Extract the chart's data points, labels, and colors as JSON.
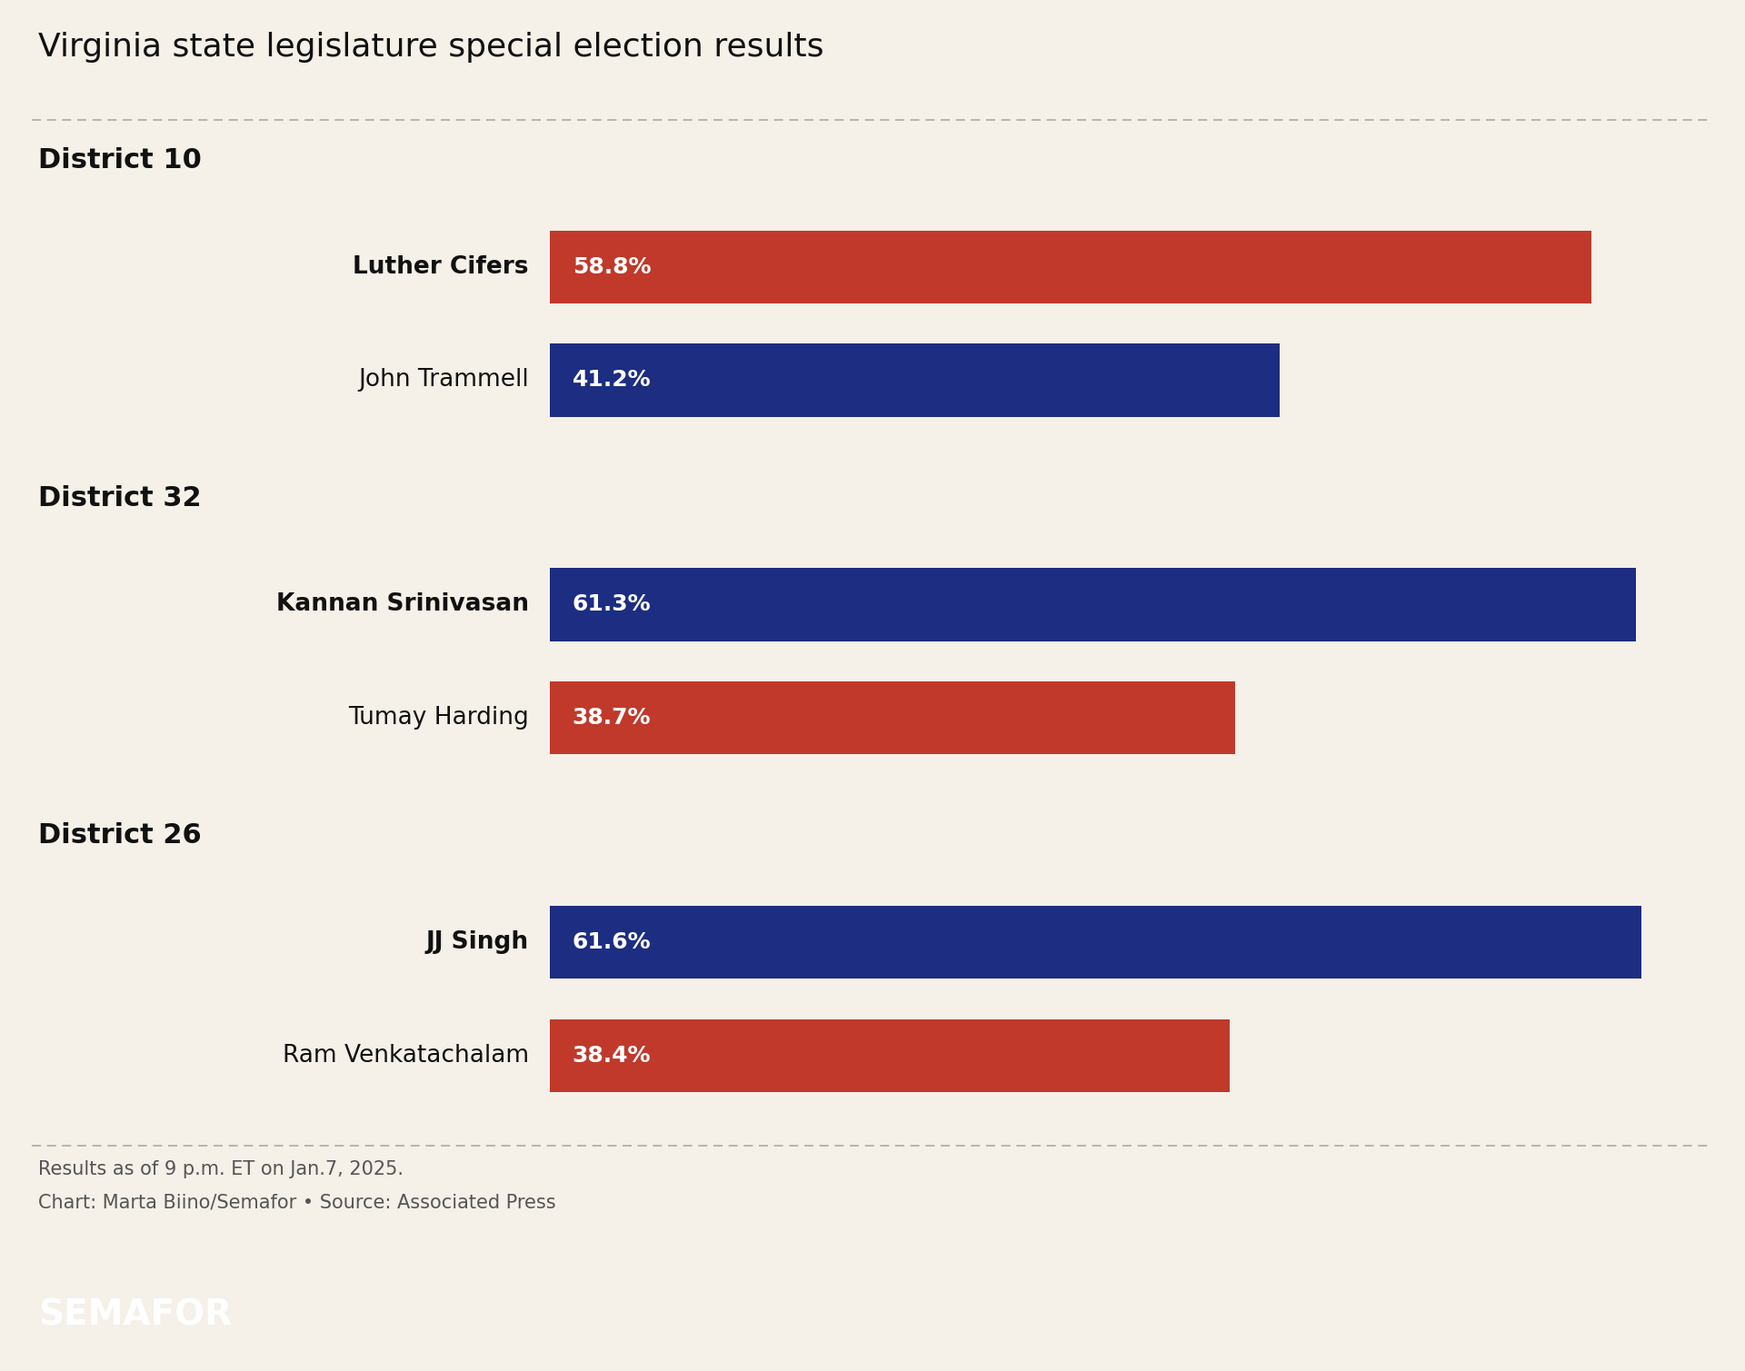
{
  "title": "Virginia state legislature special election results",
  "background_color": "#f5f0e8",
  "footer_bg": "#000000",
  "semafor_text": "SEMAFOR",
  "districts": [
    {
      "label": "District 10",
      "candidates": [
        {
          "name": "Luther Cifers",
          "pct": 58.8,
          "color": "#c0392b",
          "bold": true
        },
        {
          "name": "John Trammell",
          "pct": 41.2,
          "color": "#1c2d82",
          "bold": false
        }
      ]
    },
    {
      "label": "District 32",
      "candidates": [
        {
          "name": "Kannan Srinivasan",
          "pct": 61.3,
          "color": "#1c2d82",
          "bold": true
        },
        {
          "name": "Tumay Harding",
          "pct": 38.7,
          "color": "#c0392b",
          "bold": false
        }
      ]
    },
    {
      "label": "District 26",
      "candidates": [
        {
          "name": "JJ Singh",
          "pct": 61.6,
          "color": "#1c2d82",
          "bold": true
        },
        {
          "name": "Ram Venkatachalam",
          "pct": 38.4,
          "color": "#c0392b",
          "bold": false
        }
      ]
    }
  ],
  "note_line1": "Results as of 9 p.m. ET on Jan.7, 2025.",
  "note_line2": "Chart: Marta Biino/Semafor • Source: Associated Press",
  "title_fontsize": 26,
  "district_fontsize": 22,
  "candidate_fontsize": 19,
  "note_fontsize": 15,
  "semafor_fontsize": 28,
  "bar_pct_fontsize": 18
}
